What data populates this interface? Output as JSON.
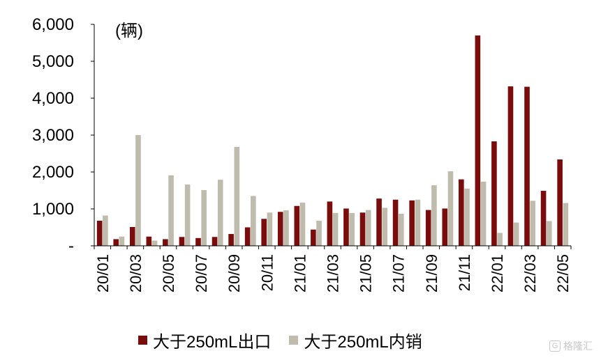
{
  "chart_data": {
    "type": "bar",
    "unit_label": "(辆)",
    "y_ticks": [
      "-",
      "1,000",
      "2,000",
      "3,000",
      "4,000",
      "5,000",
      "6,000"
    ],
    "ylim": [
      0,
      6000
    ],
    "categories": [
      "20/01",
      "20/02",
      "20/03",
      "20/04",
      "20/05",
      "20/06",
      "20/07",
      "20/08",
      "20/09",
      "20/10",
      "20/11",
      "20/12",
      "21/01",
      "21/02",
      "21/03",
      "21/04",
      "21/05",
      "21/06",
      "21/07",
      "21/08",
      "21/09",
      "21/10",
      "21/11",
      "21/12",
      "22/01",
      "22/02",
      "22/03",
      "22/04",
      "22/05"
    ],
    "x_tick_labels": [
      "20/01",
      "",
      "20/03",
      "",
      "20/05",
      "",
      "20/07",
      "",
      "20/09",
      "",
      "20/11",
      "",
      "21/01",
      "",
      "21/03",
      "",
      "21/05",
      "",
      "21/07",
      "",
      "21/09",
      "",
      "21/11",
      "",
      "22/01",
      "",
      "22/03",
      "",
      "22/05"
    ],
    "series": [
      {
        "name": "大于250mL出口",
        "color": "#7a0c0c",
        "values": [
          680,
          180,
          510,
          250,
          180,
          240,
          210,
          240,
          320,
          500,
          730,
          920,
          1080,
          440,
          1200,
          1010,
          900,
          1280,
          1250,
          1230,
          970,
          1010,
          1800,
          5700,
          2830,
          4320,
          4310,
          1490,
          2340
        ]
      },
      {
        "name": "大于250mL内销",
        "color": "#bfbcae",
        "values": [
          820,
          250,
          3000,
          140,
          1910,
          1660,
          1510,
          1790,
          2680,
          1350,
          900,
          960,
          1170,
          680,
          890,
          890,
          970,
          1030,
          870,
          1250,
          1640,
          2020,
          1550,
          1740,
          350,
          630,
          1220,
          670,
          1160
        ]
      }
    ],
    "legend_position": "bottom",
    "grid": false
  },
  "watermark": {
    "text": "格隆汇",
    "logo": "G"
  }
}
